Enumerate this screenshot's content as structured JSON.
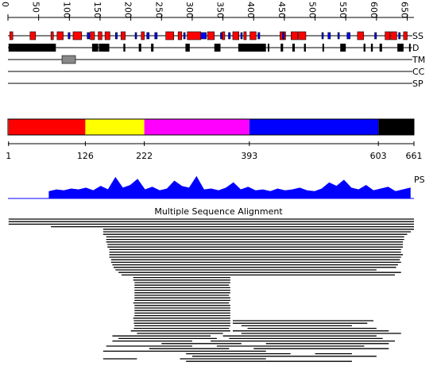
{
  "ruler": {
    "xlim": [
      0,
      661
    ],
    "xticks": [
      0,
      50,
      100,
      150,
      200,
      250,
      300,
      350,
      400,
      450,
      500,
      550,
      600,
      650
    ]
  },
  "tracks": [
    {
      "label": "SS",
      "features": [
        {
          "color": "#ff0000",
          "spans": [
            [
              3,
              8
            ],
            [
              36,
              45
            ],
            [
              70,
              74
            ],
            [
              80,
              90
            ],
            [
              106,
              120
            ],
            [
              134,
              141
            ],
            [
              147,
              153
            ],
            [
              158,
              166
            ],
            [
              184,
              191
            ],
            [
              217,
              222
            ],
            [
              257,
              270
            ],
            [
              277,
              283
            ],
            [
              292,
              314
            ],
            [
              325,
              336
            ],
            [
              349,
              353
            ],
            [
              366,
              376
            ],
            [
              384,
              388
            ],
            [
              394,
              404
            ],
            [
              443,
              452
            ],
            [
              461,
              472
            ],
            [
              473,
              485
            ],
            [
              569,
              579
            ],
            [
              614,
              622
            ],
            [
              623,
              633
            ],
            [
              644,
              650
            ]
          ]
        },
        {
          "color": "#0000ff",
          "spans": [
            [
              98,
              101
            ],
            [
              129,
              133
            ],
            [
              175,
              178
            ],
            [
              207,
              209
            ],
            [
              226,
              230
            ],
            [
              239,
              243
            ],
            [
              286,
              288
            ],
            [
              314,
              323
            ],
            [
              346,
              348
            ],
            [
              359,
              362
            ],
            [
              379,
              381
            ],
            [
              407,
              410
            ],
            [
              447,
              450
            ],
            [
              511,
              513
            ],
            [
              521,
              525
            ],
            [
              537,
              539
            ],
            [
              552,
              557
            ],
            [
              597,
              600
            ],
            [
              636,
              638
            ]
          ]
        }
      ]
    },
    {
      "label": "D",
      "features": [
        {
          "color": "#000000",
          "spans": [
            [
              1,
              78
            ],
            [
              137,
              147
            ],
            [
              148,
              165
            ],
            [
              188,
              191
            ],
            [
              213,
              217
            ],
            [
              233,
              237
            ],
            [
              289,
              296
            ],
            [
              336,
              346
            ],
            [
              375,
              420
            ],
            [
              423,
              425
            ],
            [
              444,
              448
            ],
            [
              463,
              467
            ],
            [
              482,
              485
            ],
            [
              512,
              514
            ],
            [
              541,
              550
            ],
            [
              579,
              582
            ],
            [
              591,
              594
            ],
            [
              605,
              609
            ],
            [
              634,
              644
            ],
            [
              653,
              655
            ]
          ]
        }
      ]
    },
    {
      "label": "TM",
      "features": [
        {
          "color": "#888888",
          "spans": [
            [
              88,
              110
            ]
          ]
        }
      ]
    },
    {
      "label": "CC",
      "features": []
    },
    {
      "label": "SP",
      "features": []
    }
  ],
  "domains": {
    "boundaries": [
      1,
      126,
      222,
      393,
      603,
      661
    ],
    "colors": [
      "#ff0000",
      "#ffff00",
      "#ff00ff",
      "#0000ff",
      "#000000"
    ]
  },
  "ps": {
    "label": "PS",
    "color": "#0000ff",
    "x": [
      67,
      79,
      91,
      103,
      115,
      127,
      139,
      151,
      163,
      175,
      187,
      199,
      211,
      223,
      235,
      247,
      259,
      271,
      283,
      295,
      307,
      319,
      331,
      343,
      355,
      367,
      379,
      391,
      403,
      415,
      427,
      439,
      451,
      463,
      475,
      487,
      499,
      511,
      523,
      535,
      547,
      559,
      571,
      583,
      595,
      607,
      619,
      631,
      643,
      655
    ],
    "values": [
      8,
      10,
      9,
      11,
      10,
      12,
      9,
      14,
      10,
      24,
      12,
      15,
      22,
      10,
      13,
      9,
      11,
      20,
      14,
      12,
      25,
      10,
      11,
      9,
      12,
      18,
      10,
      13,
      9,
      10,
      8,
      11,
      9,
      10,
      12,
      9,
      8,
      11,
      18,
      14,
      21,
      12,
      10,
      15,
      9,
      11,
      13,
      8,
      10,
      12
    ]
  },
  "msa": {
    "title": "Multiple Sequence Alignment",
    "rows": [
      [
        [
          1,
          661
        ]
      ],
      [
        [
          1,
          661
        ]
      ],
      [
        [
          1,
          661
        ]
      ],
      [
        [
          70,
          661
        ]
      ],
      [
        [
          155,
          661
        ]
      ],
      [
        [
          155,
          656
        ]
      ],
      [
        [
          155,
          650
        ]
      ],
      [
        [
          160,
          645
        ]
      ],
      [
        [
          160,
          645
        ]
      ],
      [
        [
          160,
          643
        ]
      ],
      [
        [
          162,
          643
        ]
      ],
      [
        [
          162,
          643
        ]
      ],
      [
        [
          165,
          640
        ]
      ],
      [
        [
          165,
          640
        ]
      ],
      [
        [
          165,
          643
        ]
      ],
      [
        [
          165,
          640
        ]
      ],
      [
        [
          168,
          638
        ]
      ],
      [
        [
          168,
          640
        ]
      ],
      [
        [
          170,
          635
        ]
      ],
      [
        [
          172,
          632
        ]
      ],
      [
        [
          175,
          600
        ]
      ],
      [
        [
          180,
          640
        ]
      ],
      [
        [
          185,
          630
        ]
      ],
      [
        [
          204,
          362
        ]
      ],
      [
        [
          204,
          362
        ]
      ],
      [
        [
          206,
          362
        ]
      ],
      [
        [
          206,
          360
        ]
      ],
      [
        [
          206,
          362
        ]
      ],
      [
        [
          206,
          362
        ]
      ],
      [
        [
          206,
          362
        ]
      ],
      [
        [
          206,
          360
        ]
      ],
      [
        [
          206,
          362
        ]
      ],
      [
        [
          206,
          362
        ]
      ],
      [
        [
          204,
          360
        ]
      ],
      [
        [
          206,
          362
        ]
      ],
      [
        [
          206,
          362
        ]
      ],
      [
        [
          206,
          362
        ]
      ],
      [
        [
          206,
          362
        ]
      ],
      [
        [
          206,
          362
        ]
      ],
      [
        [
          204,
          362
        ]
      ],
      [
        [
          205,
          362
        ],
        [
          366,
          595
        ]
      ],
      [
        [
          205,
          362
        ],
        [
          366,
          585
        ]
      ],
      [
        [
          206,
          362
        ],
        [
          380,
          560
        ]
      ],
      [
        [
          205,
          360
        ],
        [
          390,
          600
        ]
      ],
      [
        [
          200,
          362
        ],
        [
          366,
          620
        ]
      ],
      [
        [
          210,
          350
        ],
        [
          380,
          640
        ]
      ],
      [
        [
          170,
          330
        ],
        [
          350,
          600
        ]
      ],
      [
        [
          180,
          340
        ],
        [
          360,
          610
        ]
      ],
      [
        [
          170,
          300
        ],
        [
          330,
          630
        ]
      ],
      [
        [
          250,
          380
        ],
        [
          420,
          620
        ]
      ],
      [
        [
          160,
          300
        ],
        [
          340,
          580
        ]
      ],
      [
        [
          230,
          360
        ],
        [
          400,
          620
        ]
      ],
      [
        [
          155,
          420
        ]
      ],
      [
        [
          290,
          460
        ],
        [
          500,
          560
        ]
      ],
      [
        [
          300,
          600
        ]
      ],
      [
        [
          155,
          210
        ],
        [
          280,
          420
        ]
      ],
      [
        [
          290,
          560
        ]
      ]
    ]
  }
}
